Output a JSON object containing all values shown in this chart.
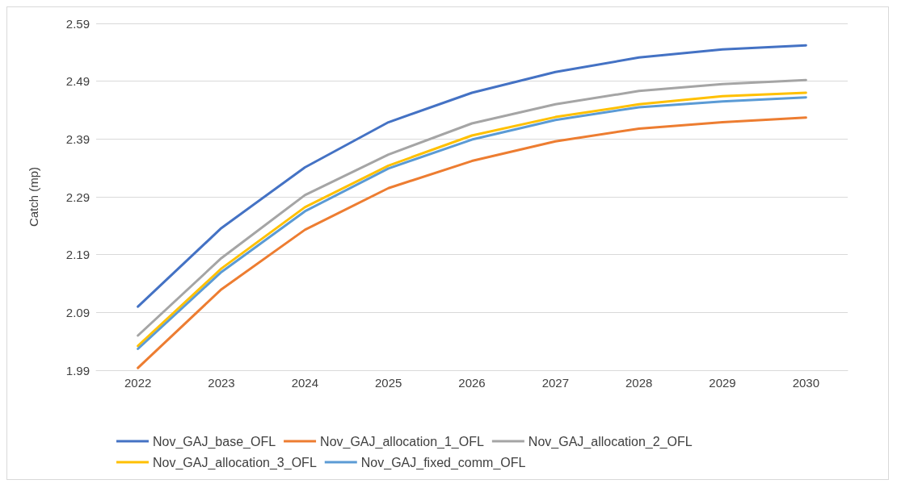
{
  "chart_data": {
    "type": "line",
    "ylabel": "Catch (mp)",
    "categories": [
      "2022",
      "2023",
      "2024",
      "2025",
      "2026",
      "2027",
      "2028",
      "2029",
      "2030"
    ],
    "series": [
      {
        "name": "Nov_GAJ_base_OFL",
        "color": "#4472c4",
        "values": [
          2.1,
          2.236,
          2.341,
          2.419,
          2.47,
          2.506,
          2.531,
          2.545,
          2.552
        ]
      },
      {
        "name": "Nov_GAJ_allocation_1_OFL",
        "color": "#ed7d31",
        "values": [
          1.994,
          2.13,
          2.233,
          2.305,
          2.352,
          2.386,
          2.408,
          2.419,
          2.427
        ]
      },
      {
        "name": "Nov_GAJ_allocation_2_OFL",
        "color": "#a5a5a5",
        "values": [
          2.05,
          2.184,
          2.293,
          2.363,
          2.417,
          2.45,
          2.473,
          2.485,
          2.492
        ]
      },
      {
        "name": "Nov_GAJ_allocation_3_OFL",
        "color": "#ffc000",
        "values": [
          2.032,
          2.166,
          2.272,
          2.344,
          2.396,
          2.428,
          2.45,
          2.464,
          2.47
        ]
      },
      {
        "name": "Nov_GAJ_fixed_comm_OFL",
        "color": "#5b9bd5",
        "values": [
          2.027,
          2.16,
          2.265,
          2.339,
          2.389,
          2.423,
          2.445,
          2.455,
          2.462
        ]
      }
    ],
    "ylim": [
      1.99,
      2.59
    ],
    "yticks": [
      1.99,
      2.09,
      2.19,
      2.29,
      2.39,
      2.49,
      2.59
    ],
    "grid": "y",
    "legend": "bottom",
    "marker": "none",
    "line_style": "solid"
  }
}
